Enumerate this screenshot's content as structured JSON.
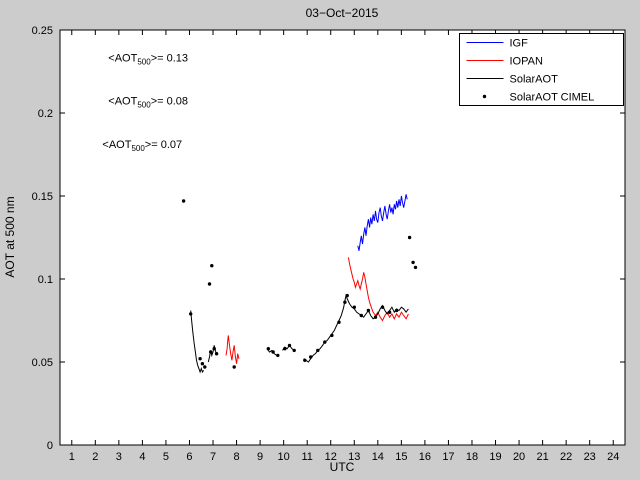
{
  "figure": {
    "title": "03−Oct−2015",
    "xlabel": "UTC",
    "ylabel": "AOT at 500 nm",
    "background": "#cccccc",
    "plot_background": "#ffffff",
    "axis_color": "#000000"
  },
  "chart_data": {
    "type": "line",
    "title": "03−Oct−2015",
    "xlabel": "UTC",
    "ylabel": "AOT at 500 nm",
    "xlim": [
      0.5,
      24.5
    ],
    "ylim": [
      0,
      0.25
    ],
    "grid": false,
    "xticks": [
      1,
      2,
      3,
      4,
      5,
      6,
      7,
      8,
      9,
      10,
      11,
      12,
      13,
      14,
      15,
      16,
      17,
      18,
      19,
      20,
      21,
      22,
      23,
      24
    ],
    "ytick_values": [
      0,
      0.05,
      0.1,
      0.15,
      0.2,
      0.25
    ],
    "ytick_labels": [
      "0",
      "0.05",
      "0.1",
      "0.15",
      "0.2",
      "0.25"
    ],
    "legend_position": "top-right",
    "annotations": [
      {
        "pre": "<AOT",
        "sub": "500",
        "post": ">= 0.13",
        "color": "#0000ff",
        "x": 2.55,
        "y": 0.231
      },
      {
        "pre": "<AOT",
        "sub": "500",
        "post": ">= 0.08",
        "color": "#ff0000",
        "x": 2.55,
        "y": 0.205
      },
      {
        "pre": "<AOT",
        "sub": "500",
        "post": ">= 0.07",
        "color": "#000000",
        "x": 2.3,
        "y": 0.179
      }
    ],
    "series": [
      {
        "name": "IGF",
        "color": "#0000ff",
        "style": "line",
        "segments": [
          [
            [
              13.15,
              0.12
            ],
            [
              13.2,
              0.117
            ],
            [
              13.25,
              0.122
            ],
            [
              13.3,
              0.126
            ],
            [
              13.35,
              0.121
            ],
            [
              13.4,
              0.127
            ],
            [
              13.45,
              0.131
            ],
            [
              13.5,
              0.126
            ],
            [
              13.55,
              0.132
            ],
            [
              13.6,
              0.136
            ],
            [
              13.65,
              0.131
            ],
            [
              13.7,
              0.137
            ],
            [
              13.75,
              0.133
            ],
            [
              13.8,
              0.139
            ],
            [
              13.85,
              0.135
            ],
            [
              13.9,
              0.141
            ],
            [
              13.95,
              0.136
            ],
            [
              14.0,
              0.134
            ],
            [
              14.05,
              0.14
            ],
            [
              14.1,
              0.143
            ],
            [
              14.15,
              0.138
            ],
            [
              14.2,
              0.135
            ],
            [
              14.25,
              0.14
            ],
            [
              14.3,
              0.144
            ],
            [
              14.35,
              0.139
            ],
            [
              14.4,
              0.136
            ],
            [
              14.45,
              0.141
            ],
            [
              14.5,
              0.145
            ],
            [
              14.55,
              0.14
            ],
            [
              14.6,
              0.143
            ],
            [
              14.65,
              0.139
            ],
            [
              14.7,
              0.145
            ],
            [
              14.75,
              0.142
            ],
            [
              14.8,
              0.147
            ],
            [
              14.85,
              0.143
            ],
            [
              14.9,
              0.148
            ],
            [
              14.95,
              0.144
            ],
            [
              15.0,
              0.15
            ],
            [
              15.05,
              0.146
            ],
            [
              15.1,
              0.143
            ],
            [
              15.15,
              0.147
            ],
            [
              15.2,
              0.151
            ],
            [
              15.25,
              0.148
            ]
          ]
        ]
      },
      {
        "name": "IOPAN",
        "color": "#ff0000",
        "style": "line",
        "segments": [
          [
            [
              7.55,
              0.054
            ],
            [
              7.6,
              0.058
            ],
            [
              7.62,
              0.062
            ],
            [
              7.65,
              0.066
            ],
            [
              7.7,
              0.06
            ],
            [
              7.75,
              0.055
            ],
            [
              7.8,
              0.051
            ],
            [
              7.85,
              0.056
            ],
            [
              7.9,
              0.06
            ],
            [
              7.95,
              0.053
            ],
            [
              8.0,
              0.049
            ],
            [
              8.05,
              0.055
            ],
            [
              8.1,
              0.052
            ]
          ],
          [
            [
              12.75,
              0.113
            ],
            [
              12.8,
              0.109
            ],
            [
              12.85,
              0.106
            ],
            [
              12.9,
              0.103
            ],
            [
              12.95,
              0.1
            ],
            [
              13.0,
              0.098
            ],
            [
              13.05,
              0.095
            ],
            [
              13.1,
              0.097
            ],
            [
              13.15,
              0.099
            ],
            [
              13.2,
              0.096
            ],
            [
              13.25,
              0.094
            ],
            [
              13.3,
              0.097
            ],
            [
              13.35,
              0.1
            ],
            [
              13.4,
              0.104
            ],
            [
              13.45,
              0.101
            ],
            [
              13.5,
              0.097
            ],
            [
              13.55,
              0.093
            ],
            [
              13.6,
              0.089
            ],
            [
              13.65,
              0.086
            ],
            [
              13.7,
              0.084
            ],
            [
              13.75,
              0.082
            ],
            [
              13.8,
              0.08
            ],
            [
              13.9,
              0.078
            ],
            [
              14.0,
              0.08
            ],
            [
              14.1,
              0.077
            ],
            [
              14.2,
              0.075
            ],
            [
              14.3,
              0.078
            ],
            [
              14.4,
              0.08
            ],
            [
              14.5,
              0.077
            ],
            [
              14.6,
              0.079
            ],
            [
              14.7,
              0.076
            ],
            [
              14.8,
              0.079
            ],
            [
              14.9,
              0.077
            ],
            [
              15.0,
              0.08
            ],
            [
              15.1,
              0.078
            ],
            [
              15.2,
              0.076
            ],
            [
              15.3,
              0.079
            ]
          ]
        ]
      },
      {
        "name": "SolarAOT",
        "color": "#000000",
        "style": "line",
        "segments": [
          [
            [
              6.05,
              0.081
            ],
            [
              6.1,
              0.074
            ],
            [
              6.15,
              0.067
            ],
            [
              6.2,
              0.061
            ],
            [
              6.25,
              0.056
            ],
            [
              6.3,
              0.051
            ],
            [
              6.35,
              0.048
            ],
            [
              6.4,
              0.046
            ],
            [
              6.45,
              0.044
            ],
            [
              6.5,
              0.046
            ],
            [
              6.55,
              0.044
            ],
            [
              6.6,
              0.045
            ]
          ],
          [
            [
              6.8,
              0.05
            ],
            [
              6.85,
              0.053
            ],
            [
              6.9,
              0.057
            ],
            [
              6.95,
              0.054
            ],
            [
              7.0,
              0.056
            ],
            [
              7.05,
              0.06
            ],
            [
              7.1,
              0.057
            ],
            [
              7.15,
              0.054
            ]
          ],
          [
            [
              9.3,
              0.058
            ],
            [
              9.4,
              0.056
            ],
            [
              9.5,
              0.057
            ],
            [
              9.6,
              0.055
            ],
            [
              9.7,
              0.054
            ]
          ],
          [
            [
              9.95,
              0.057
            ],
            [
              10.05,
              0.059
            ],
            [
              10.15,
              0.058
            ],
            [
              10.25,
              0.06
            ],
            [
              10.35,
              0.058
            ],
            [
              10.45,
              0.057
            ]
          ],
          [
            [
              10.85,
              0.052
            ],
            [
              10.95,
              0.051
            ],
            [
              11.05,
              0.05
            ],
            [
              11.15,
              0.052
            ],
            [
              11.25,
              0.054
            ],
            [
              11.35,
              0.055
            ],
            [
              11.45,
              0.057
            ],
            [
              11.55,
              0.058
            ],
            [
              11.65,
              0.06
            ],
            [
              11.75,
              0.062
            ],
            [
              11.85,
              0.063
            ],
            [
              11.95,
              0.065
            ],
            [
              12.05,
              0.067
            ],
            [
              12.15,
              0.069
            ],
            [
              12.25,
              0.072
            ],
            [
              12.35,
              0.075
            ],
            [
              12.45,
              0.078
            ],
            [
              12.55,
              0.083
            ],
            [
              12.6,
              0.087
            ],
            [
              12.65,
              0.09
            ],
            [
              12.7,
              0.088
            ],
            [
              12.8,
              0.085
            ],
            [
              12.9,
              0.083
            ],
            [
              13.0,
              0.082
            ],
            [
              13.1,
              0.08
            ],
            [
              13.2,
              0.079
            ],
            [
              13.3,
              0.078
            ],
            [
              13.4,
              0.077
            ],
            [
              13.5,
              0.079
            ],
            [
              13.6,
              0.081
            ],
            [
              13.7,
              0.078
            ],
            [
              13.8,
              0.076
            ],
            [
              13.9,
              0.077
            ],
            [
              14.0,
              0.079
            ],
            [
              14.1,
              0.082
            ],
            [
              14.2,
              0.084
            ],
            [
              14.3,
              0.081
            ],
            [
              14.4,
              0.079
            ],
            [
              14.5,
              0.081
            ],
            [
              14.6,
              0.083
            ],
            [
              14.7,
              0.08
            ],
            [
              14.8,
              0.082
            ],
            [
              14.9,
              0.081
            ],
            [
              15.0,
              0.083
            ],
            [
              15.1,
              0.082
            ],
            [
              15.2,
              0.08
            ],
            [
              15.3,
              0.082
            ]
          ]
        ]
      },
      {
        "name": "SolarAOT CIMEL",
        "color": "#000000",
        "style": "scatter",
        "points": [
          [
            5.75,
            0.147
          ],
          [
            6.05,
            0.079
          ],
          [
            6.45,
            0.052
          ],
          [
            6.55,
            0.049
          ],
          [
            6.65,
            0.047
          ],
          [
            6.85,
            0.097
          ],
          [
            6.95,
            0.108
          ],
          [
            6.9,
            0.056
          ],
          [
            7.05,
            0.058
          ],
          [
            7.15,
            0.055
          ],
          [
            7.9,
            0.047
          ],
          [
            9.35,
            0.058
          ],
          [
            9.55,
            0.056
          ],
          [
            9.75,
            0.054
          ],
          [
            10.05,
            0.058
          ],
          [
            10.25,
            0.06
          ],
          [
            10.45,
            0.057
          ],
          [
            10.9,
            0.051
          ],
          [
            11.15,
            0.053
          ],
          [
            11.45,
            0.057
          ],
          [
            11.75,
            0.062
          ],
          [
            12.05,
            0.066
          ],
          [
            12.35,
            0.074
          ],
          [
            12.6,
            0.086
          ],
          [
            12.7,
            0.09
          ],
          [
            13.0,
            0.083
          ],
          [
            13.3,
            0.078
          ],
          [
            13.6,
            0.081
          ],
          [
            13.9,
            0.077
          ],
          [
            14.2,
            0.083
          ],
          [
            14.5,
            0.08
          ],
          [
            14.8,
            0.081
          ],
          [
            15.35,
            0.125
          ],
          [
            15.5,
            0.11
          ],
          [
            15.6,
            0.107
          ]
        ]
      }
    ]
  }
}
